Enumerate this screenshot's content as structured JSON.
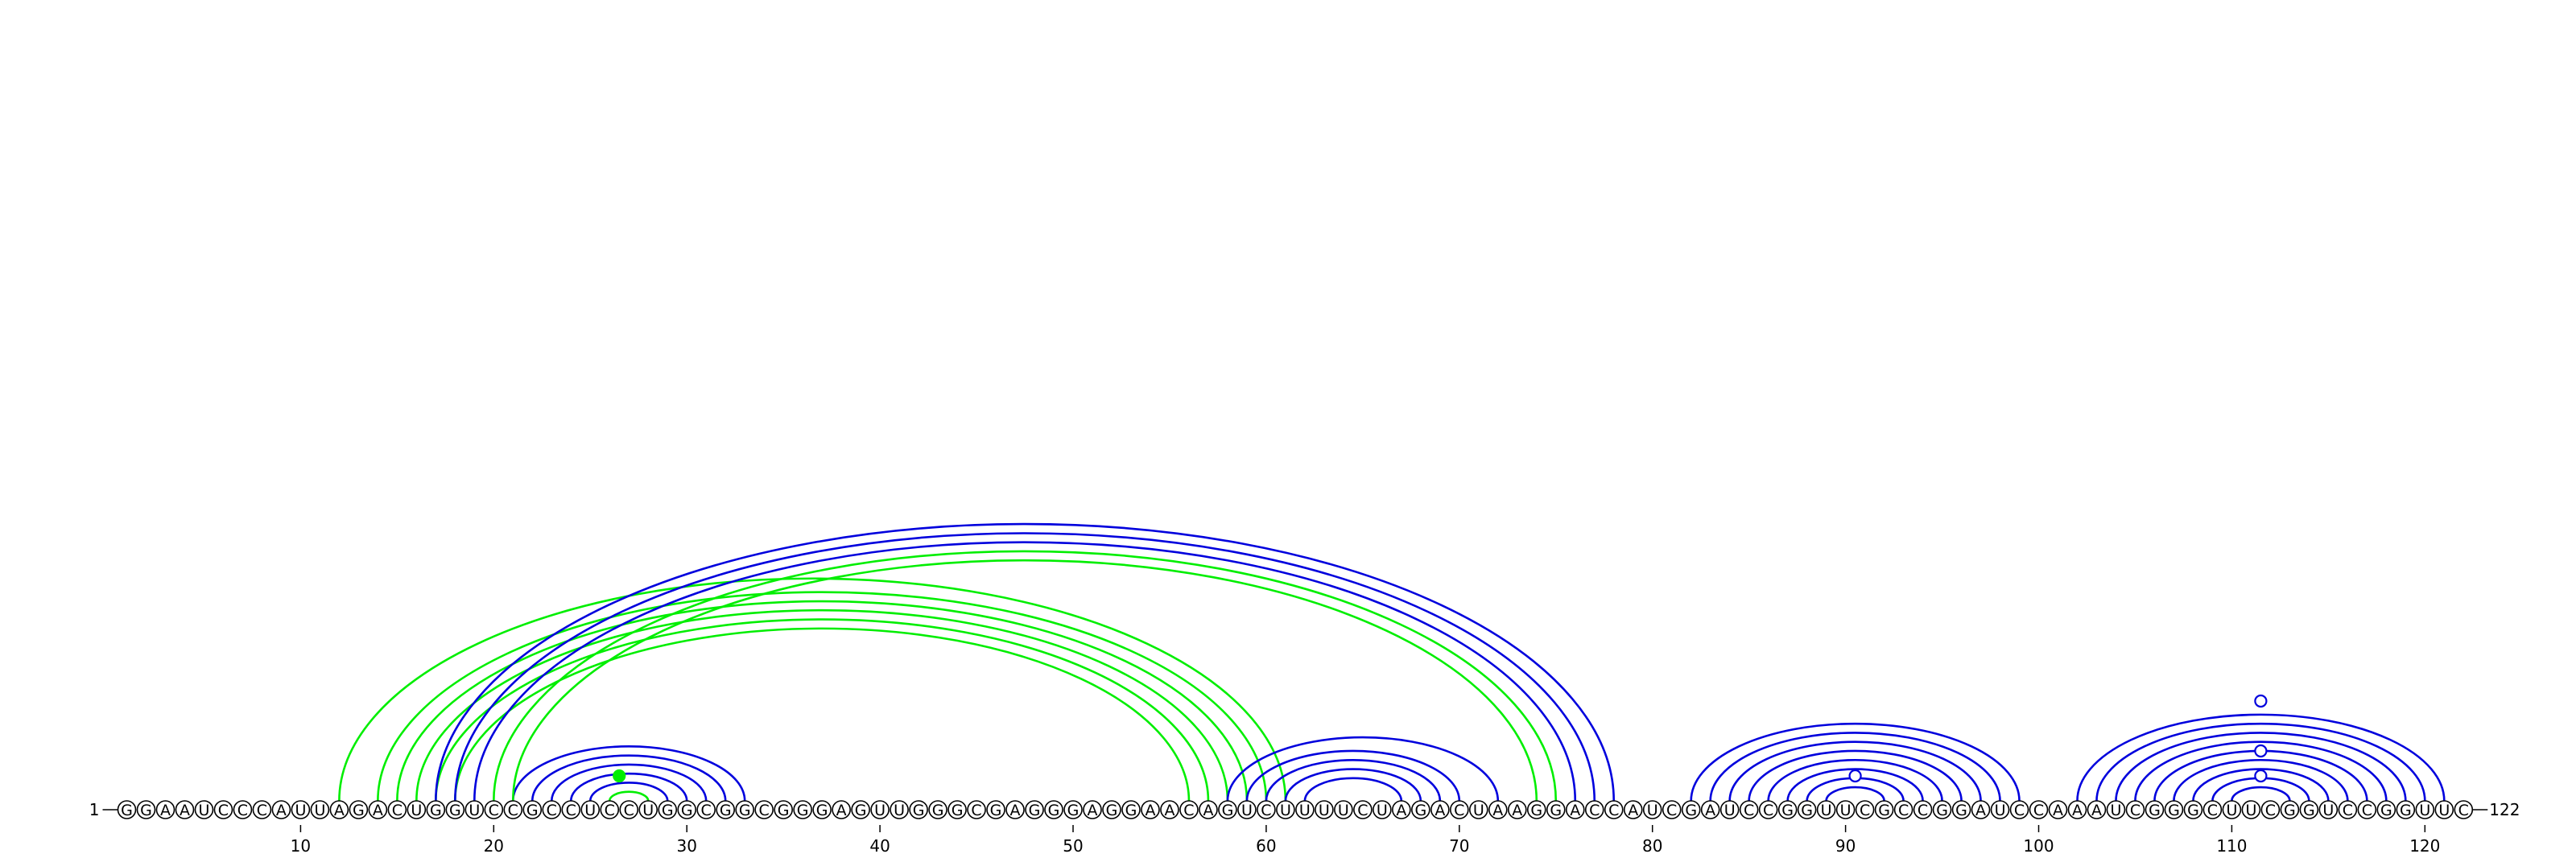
{
  "diagram": {
    "sequence": "GGAAUCCCAUUAGACUGGUCCGCCUCCUGGCGGCGGGAGUUGGGCGAGGGAGGAACAGUCUUUUCUAGACUAAGGACCAUCGAUCCGGUUCGCCGGAUCCAAAUCGGGCUUCGGUCCGGUUC",
    "start_label": "1",
    "end_label": "122",
    "ticks": [
      10,
      20,
      30,
      40,
      50,
      60,
      70,
      80,
      90,
      100,
      110,
      120
    ],
    "colors": {
      "blue": "#0000dd",
      "green": "#00ee00"
    },
    "arcs": [
      {
        "i": 21,
        "j": 33,
        "color": "blue"
      },
      {
        "i": 22,
        "j": 32,
        "color": "blue"
      },
      {
        "i": 23,
        "j": 31,
        "color": "blue"
      },
      {
        "i": 24,
        "j": 30,
        "color": "blue"
      },
      {
        "i": 25,
        "j": 29,
        "color": "blue"
      },
      {
        "i": 26,
        "j": 28,
        "color": "green"
      },
      {
        "i": 12,
        "j": 61,
        "color": "green"
      },
      {
        "i": 14,
        "j": 60,
        "color": "green"
      },
      {
        "i": 15,
        "j": 59,
        "color": "green"
      },
      {
        "i": 16,
        "j": 58,
        "color": "green"
      },
      {
        "i": 17,
        "j": 57,
        "color": "green"
      },
      {
        "i": 18,
        "j": 56,
        "color": "green"
      },
      {
        "i": 17,
        "j": 78,
        "color": "blue"
      },
      {
        "i": 18,
        "j": 77,
        "color": "blue"
      },
      {
        "i": 19,
        "j": 76,
        "color": "blue"
      },
      {
        "i": 20,
        "j": 75,
        "color": "green"
      },
      {
        "i": 21,
        "j": 74,
        "color": "green"
      },
      {
        "i": 58,
        "j": 72,
        "color": "blue"
      },
      {
        "i": 59,
        "j": 70,
        "color": "blue"
      },
      {
        "i": 60,
        "j": 69,
        "color": "blue"
      },
      {
        "i": 61,
        "j": 68,
        "color": "blue"
      },
      {
        "i": 62,
        "j": 67,
        "color": "blue"
      },
      {
        "i": 82,
        "j": 99,
        "color": "blue"
      },
      {
        "i": 83,
        "j": 98,
        "color": "blue"
      },
      {
        "i": 84,
        "j": 97,
        "color": "blue"
      },
      {
        "i": 85,
        "j": 96,
        "color": "blue"
      },
      {
        "i": 86,
        "j": 95,
        "color": "blue"
      },
      {
        "i": 87,
        "j": 94,
        "color": "blue"
      },
      {
        "i": 88,
        "j": 93,
        "color": "blue"
      },
      {
        "i": 89,
        "j": 92,
        "color": "blue"
      },
      {
        "i": 102,
        "j": 121,
        "color": "blue"
      },
      {
        "i": 103,
        "j": 120,
        "color": "blue"
      },
      {
        "i": 104,
        "j": 119,
        "color": "blue"
      },
      {
        "i": 105,
        "j": 118,
        "color": "blue"
      },
      {
        "i": 106,
        "j": 117,
        "color": "blue"
      },
      {
        "i": 107,
        "j": 116,
        "color": "blue"
      },
      {
        "i": 108,
        "j": 115,
        "color": "blue"
      },
      {
        "i": 109,
        "j": 114,
        "color": "blue"
      },
      {
        "i": 110,
        "j": 113,
        "color": "blue"
      }
    ],
    "markers": [
      {
        "pos": 26.5,
        "level": 1,
        "fill": "green",
        "stroke": "green"
      },
      {
        "pos": 90.5,
        "level": 1,
        "fill": "white",
        "stroke": "blue"
      },
      {
        "pos": 111.5,
        "level": 1,
        "fill": "white",
        "stroke": "blue"
      },
      {
        "pos": 111.5,
        "level": 2,
        "fill": "white",
        "stroke": "blue"
      },
      {
        "pos": 111.5,
        "level": 4,
        "fill": "white",
        "stroke": "blue"
      }
    ]
  }
}
